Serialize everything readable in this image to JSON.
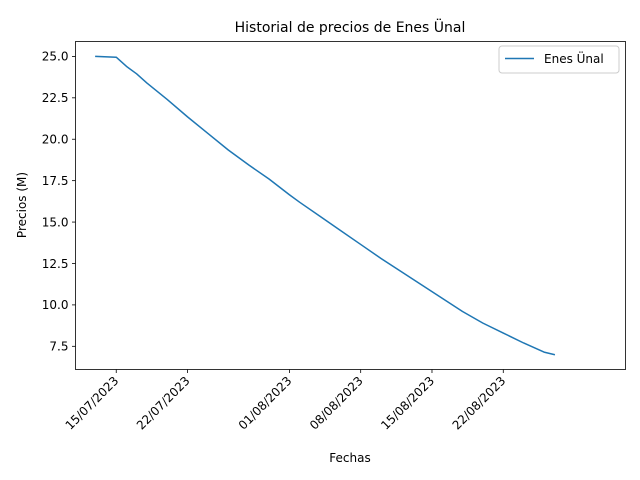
{
  "chart_data": {
    "type": "line",
    "title": "Historial de precios de Enes Ünal",
    "xlabel": "Fechas",
    "ylabel": "Precios (M)",
    "x_ticks": [
      "2023-07-15",
      "2023-07-22",
      "2023-08-01",
      "2023-08-08",
      "2023-08-15",
      "2023-08-22"
    ],
    "x_tick_labels": [
      "15/07/2023",
      "22/07/2023",
      "01/08/2023",
      "08/08/2023",
      "15/08/2023",
      "22/08/2023"
    ],
    "y_ticks": [
      7.5,
      10.0,
      12.5,
      15.0,
      17.5,
      20.0,
      22.5,
      25.0
    ],
    "y_tick_labels": [
      "7.5",
      "10.0",
      "12.5",
      "15.0",
      "17.5",
      "20.0",
      "22.5",
      "25.0"
    ],
    "xlim": [
      "2023-07-11",
      "2023-09-03"
    ],
    "ylim": [
      6.1,
      25.9
    ],
    "grid": false,
    "legend_position": "top-right",
    "series": [
      {
        "name": "Enes Ünal",
        "color": "#1f77b4",
        "points": [
          {
            "x": "2023-07-13",
            "y": 25.0
          },
          {
            "x": "2023-07-15",
            "y": 24.95
          },
          {
            "x": "2023-07-16",
            "y": 24.4
          },
          {
            "x": "2023-07-17",
            "y": 23.95
          },
          {
            "x": "2023-07-18",
            "y": 23.4
          },
          {
            "x": "2023-07-20",
            "y": 22.4
          },
          {
            "x": "2023-07-22",
            "y": 21.35
          },
          {
            "x": "2023-07-24",
            "y": 20.35
          },
          {
            "x": "2023-07-26",
            "y": 19.35
          },
          {
            "x": "2023-07-28",
            "y": 18.45
          },
          {
            "x": "2023-07-30",
            "y": 17.6
          },
          {
            "x": "2023-08-01",
            "y": 16.65
          },
          {
            "x": "2023-08-02",
            "y": 16.2
          },
          {
            "x": "2023-08-04",
            "y": 15.35
          },
          {
            "x": "2023-08-06",
            "y": 14.5
          },
          {
            "x": "2023-08-08",
            "y": 13.65
          },
          {
            "x": "2023-08-10",
            "y": 12.8
          },
          {
            "x": "2023-08-12",
            "y": 12.0
          },
          {
            "x": "2023-08-14",
            "y": 11.2
          },
          {
            "x": "2023-08-16",
            "y": 10.4
          },
          {
            "x": "2023-08-18",
            "y": 9.6
          },
          {
            "x": "2023-08-20",
            "y": 8.9
          },
          {
            "x": "2023-08-22",
            "y": 8.3
          },
          {
            "x": "2023-08-24",
            "y": 7.7
          },
          {
            "x": "2023-08-26",
            "y": 7.15
          },
          {
            "x": "2023-08-27",
            "y": 7.0
          }
        ]
      }
    ]
  }
}
